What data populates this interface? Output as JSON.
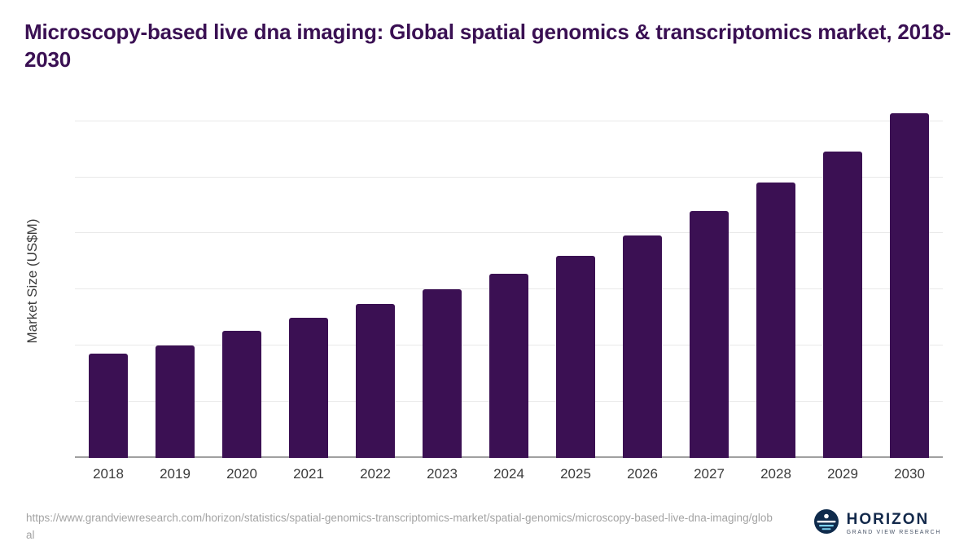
{
  "chart_data": {
    "type": "bar",
    "title": "Microscopy-based live dna imaging: Global spatial genomics & transcriptomics market, 2018-2030",
    "xlabel": "",
    "ylabel": "Market Size (US$M)",
    "categories": [
      "2018",
      "2019",
      "2020",
      "2021",
      "2022",
      "2023",
      "2024",
      "2025",
      "2026",
      "2027",
      "2028",
      "2029",
      "2030"
    ],
    "values": [
      9.3,
      10.0,
      11.3,
      12.5,
      13.7,
      15.0,
      16.4,
      18.0,
      19.8,
      22.0,
      24.5,
      27.3,
      30.7
    ],
    "yticks": [
      0,
      5,
      10,
      15,
      20,
      25,
      30
    ],
    "ylim": [
      0,
      31.5
    ],
    "grid": true,
    "legend": false,
    "bar_color": "#3b1053"
  },
  "footer": {
    "source_url": "https://www.grandviewresearch.com/horizon/statistics/spatial-genomics-transcriptomics-market/spatial-genomics/microscopy-based-live-dna-imaging/global",
    "logo_text": "HORIZON",
    "logo_subtext": "GRAND VIEW RESEARCH"
  },
  "colors": {
    "title": "#3a1053",
    "bar": "#3b1053",
    "gridline": "#e9e9e9",
    "axis_line": "#a0a0a0",
    "logo_navy": "#0f2b4c",
    "logo_light_blue": "#7ed3f0"
  }
}
